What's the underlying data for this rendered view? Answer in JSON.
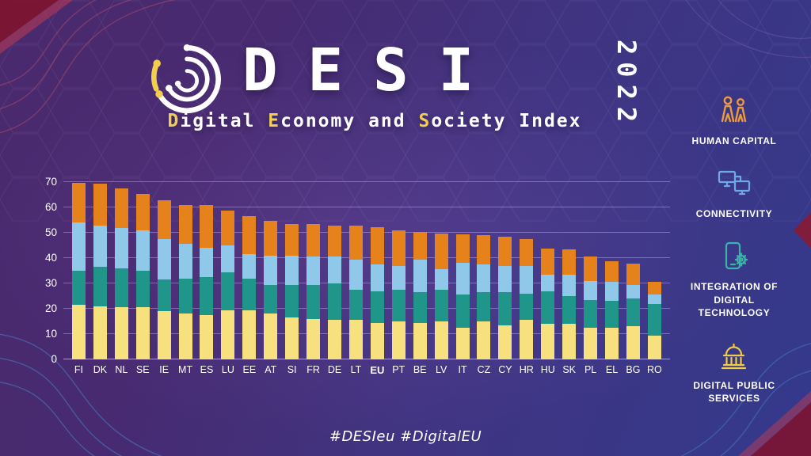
{
  "header": {
    "title": "DESI",
    "year": "2022",
    "subtitle_segments": [
      {
        "t": "D",
        "hl": true
      },
      {
        "t": "igital ",
        "hl": false
      },
      {
        "t": "E",
        "hl": true
      },
      {
        "t": "conomy and ",
        "hl": false
      },
      {
        "t": "S",
        "hl": true
      },
      {
        "t": "ociety Index",
        "hl": false
      }
    ],
    "accent_color": "#F0CE4E"
  },
  "legend": {
    "items": [
      {
        "id": "human-capital",
        "label": "HUMAN CAPITAL",
        "icon": "people-icon",
        "icon_color": "#EC9A3C"
      },
      {
        "id": "connectivity",
        "label": "CONNECTIVITY",
        "icon": "monitors-icon",
        "icon_color": "#6FA8E8"
      },
      {
        "id": "integration-of-digital-technology",
        "label": "INTEGRATION OF DIGITAL TECHNOLOGY",
        "icon": "phone-gear-icon",
        "icon_color": "#3BB3A9"
      },
      {
        "id": "digital-public-services",
        "label": "DIGITAL PUBLIC SERVICES",
        "icon": "government-building-icon",
        "icon_color": "#F3CB3F"
      }
    ]
  },
  "chart_data": {
    "type": "bar",
    "variant": "stacked",
    "title": "DESI 2022 country ranking",
    "categories": [
      "FI",
      "DK",
      "NL",
      "SE",
      "IE",
      "MT",
      "ES",
      "LU",
      "EE",
      "AT",
      "SI",
      "FR",
      "DE",
      "LT",
      "EU",
      "PT",
      "BE",
      "LV",
      "IT",
      "CZ",
      "CY",
      "HR",
      "HU",
      "SK",
      "PL",
      "EL",
      "BG",
      "RO"
    ],
    "series": [
      {
        "name": "Human Capital",
        "color": "#F7E17E",
        "values": [
          21.5,
          21.0,
          20.5,
          20.5,
          19.0,
          18.0,
          17.5,
          19.5,
          19.5,
          18.0,
          16.5,
          16.0,
          15.5,
          15.5,
          14.5,
          15.0,
          14.5,
          15.0,
          12.5,
          15.0,
          13.5,
          15.5,
          14.0,
          14.0,
          12.5,
          12.5,
          13.0,
          9.5
        ]
      },
      {
        "name": "Connectivity",
        "color": "#1F9689",
        "values": [
          13.5,
          15.5,
          15.5,
          14.5,
          12.5,
          14.0,
          15.0,
          15.0,
          12.5,
          11.5,
          13.0,
          13.5,
          14.5,
          12.0,
          12.5,
          12.5,
          12.0,
          12.5,
          13.0,
          11.5,
          13.0,
          10.5,
          13.0,
          11.0,
          11.0,
          10.5,
          11.0,
          12.5
        ]
      },
      {
        "name": "Integration of Digital Technology",
        "color": "#8FC8E9",
        "values": [
          19.0,
          16.4,
          16.0,
          16.0,
          16.0,
          13.5,
          11.5,
          10.5,
          9.5,
          11.5,
          11.5,
          11.0,
          10.5,
          12.0,
          10.5,
          9.5,
          13.0,
          8.0,
          12.5,
          11.0,
          10.5,
          11.0,
          6.5,
          8.5,
          7.5,
          7.5,
          5.5,
          3.5
        ]
      },
      {
        "name": "Digital Public Services",
        "color": "#E6821B",
        "values": [
          15.6,
          16.4,
          15.4,
          14.2,
          15.2,
          15.4,
          16.8,
          13.9,
          15.0,
          13.7,
          12.4,
          12.8,
          12.4,
          13.2,
          14.8,
          13.8,
          10.8,
          14.2,
          11.3,
          11.6,
          11.4,
          10.5,
          10.3,
          9.9,
          9.5,
          8.4,
          8.2,
          5.1
        ]
      }
    ],
    "totals": [
      69.6,
      69.3,
      67.4,
      65.2,
      62.7,
      60.9,
      60.8,
      58.9,
      56.5,
      54.7,
      53.4,
      53.3,
      52.9,
      52.7,
      52.3,
      50.8,
      50.3,
      49.7,
      49.3,
      49.1,
      48.4,
      47.5,
      43.8,
      43.4,
      40.5,
      38.9,
      37.7,
      30.6
    ],
    "xlabel": "",
    "ylabel": "",
    "ylim": [
      0,
      70
    ],
    "yticks": [
      0,
      10,
      20,
      30,
      40,
      50,
      60,
      70
    ],
    "grid": true,
    "legend_position": "right",
    "bold_category": "EU"
  },
  "footer": {
    "hashtags": "#DESIeu  #DigitalEU"
  }
}
